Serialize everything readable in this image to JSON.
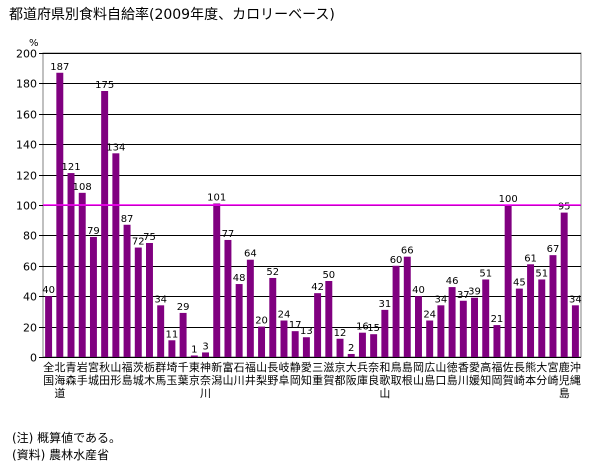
{
  "title": "都道府県別食料自給率(2009年度、カロリーベース)",
  "unit": "%",
  "notes": [
    "(注) 概算値である。",
    "(資料) 農林水産省"
  ],
  "colors": {
    "bar": "#800080",
    "reference_line": "#ff00ff",
    "grid": "#000000"
  },
  "chart_data": {
    "type": "bar",
    "title": "都道府県別食料自給率(2009年度、カロリーベース)",
    "ylabel": "%",
    "ylim": [
      0,
      200
    ],
    "yticks": [
      0,
      20,
      40,
      60,
      80,
      100,
      120,
      140,
      160,
      180,
      200
    ],
    "reference_line": 100,
    "grid": true,
    "categories": [
      "全国",
      "北海道",
      "青森",
      "岩手",
      "宮城",
      "秋田",
      "山形",
      "福島",
      "茨城",
      "栃木",
      "群馬",
      "埼玉",
      "千葉",
      "東京",
      "神奈川",
      "新潟",
      "富山",
      "石川",
      "福井",
      "山梨",
      "長野",
      "岐阜",
      "静岡",
      "愛知",
      "三重",
      "滋賀",
      "京都",
      "大阪",
      "兵庫",
      "奈良",
      "和歌山",
      "鳥取",
      "島根",
      "岡山",
      "広島",
      "山口",
      "徳島",
      "香川",
      "愛媛",
      "高知",
      "福岡",
      "佐賀",
      "長崎",
      "熊本",
      "大分",
      "宮崎",
      "鹿児島",
      "沖縄"
    ],
    "values": [
      40,
      187,
      121,
      108,
      79,
      175,
      134,
      87,
      72,
      75,
      34,
      11,
      29,
      1,
      3,
      101,
      77,
      48,
      64,
      20,
      52,
      24,
      17,
      13,
      42,
      50,
      12,
      2,
      16,
      15,
      31,
      60,
      66,
      40,
      24,
      34,
      46,
      37,
      39,
      51,
      21,
      100,
      45,
      61,
      51,
      67,
      95,
      34
    ]
  }
}
